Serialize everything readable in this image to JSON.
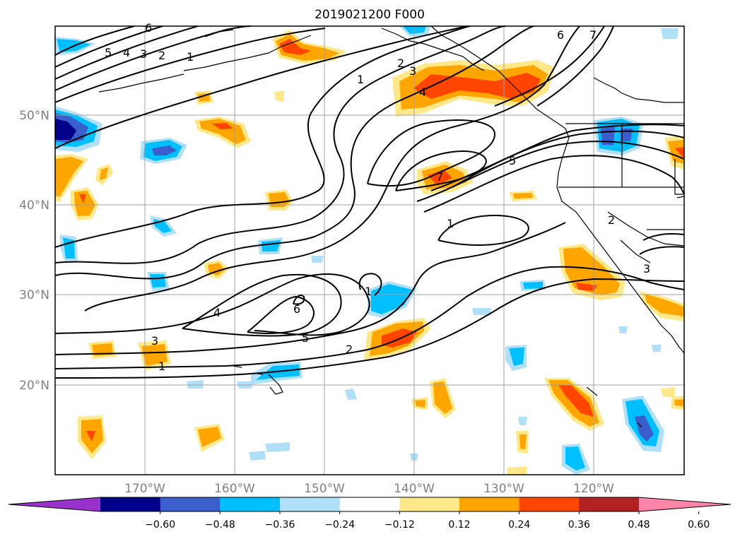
{
  "map": {
    "title": "2019021200 F000",
    "lat_labels": [
      "50°N",
      "40°N",
      "30°N",
      "20°N"
    ],
    "lon_labels": [
      "170°W",
      "160°W",
      "150°W",
      "140°W",
      "130°W",
      "120°W"
    ],
    "contour_labels": [
      "6",
      "5",
      "4",
      "3",
      "2",
      "1",
      "6",
      "7",
      "1",
      "2",
      "3",
      "4",
      "7",
      "5",
      "1",
      "2",
      "3",
      "1",
      "4",
      "6",
      "5",
      "3",
      "1",
      "2"
    ]
  },
  "colorbar": {
    "tick_labels": [
      "−0.60",
      "−0.48",
      "−0.36",
      "−0.24",
      "−0.12",
      "0.12",
      "0.24",
      "0.36",
      "0.48",
      "0.60"
    ],
    "colors": [
      "#9932cc",
      "#00008b",
      "#3a5fcd",
      "#00bfff",
      "#b0e0f8",
      "#ffffff",
      "#ffe88a",
      "#ffa500",
      "#ff4500",
      "#b22222",
      "#ff85a8"
    ]
  },
  "colors": {
    "frame": "#000000",
    "grid": "#a0a0a0",
    "contour": "#000000",
    "coast": "#000000"
  }
}
